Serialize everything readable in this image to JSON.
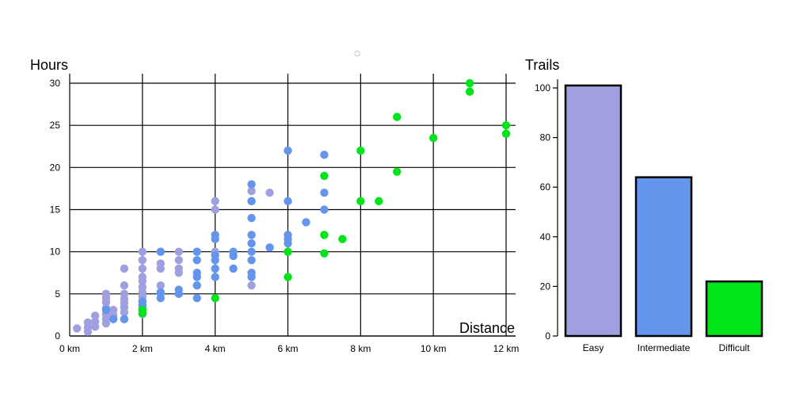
{
  "decor": {
    "top_marker": "○"
  },
  "scatter": {
    "ylabel": "Hours",
    "xlabel": "Distance",
    "xlim": [
      0,
      12
    ],
    "ylim": [
      0,
      30
    ],
    "xticks": [
      "0 km",
      "2 km",
      "4 km",
      "6 km",
      "8 km",
      "10 km",
      "12 km"
    ],
    "yticks": [
      "0",
      "5",
      "10",
      "15",
      "20",
      "25",
      "30"
    ],
    "grid": true,
    "colors": {
      "easy": "#a0a0e0",
      "intermediate": "#6495ed",
      "difficult": "#00e51a"
    }
  },
  "bars": {
    "ylabel": "Trails",
    "ylim": [
      0,
      100
    ],
    "yticks": [
      "0",
      "20",
      "40",
      "60",
      "80",
      "100"
    ]
  },
  "chart_data": [
    {
      "type": "scatter",
      "xlabel": "Distance",
      "ylabel": "Hours",
      "x_unit": "km",
      "xlim": [
        0,
        12
      ],
      "ylim": [
        0,
        30
      ],
      "grid": true,
      "series": [
        {
          "color": "#a0a0e0",
          "points": [
            [
              0.2,
              0.9
            ],
            [
              0.5,
              0.5
            ],
            [
              0.5,
              1.0
            ],
            [
              0.5,
              1.6
            ],
            [
              0.7,
              1.1
            ],
            [
              0.7,
              1.7
            ],
            [
              0.7,
              2.4
            ],
            [
              1.0,
              1.5
            ],
            [
              1.0,
              2.0
            ],
            [
              1.0,
              2.6
            ],
            [
              1.0,
              3.3
            ],
            [
              1.0,
              4.0
            ],
            [
              1.0,
              4.5
            ],
            [
              1.0,
              5.0
            ],
            [
              1.2,
              2.1
            ],
            [
              1.2,
              2.5
            ],
            [
              1.2,
              3.1
            ],
            [
              1.5,
              2.0
            ],
            [
              1.5,
              2.8
            ],
            [
              1.5,
              3.4
            ],
            [
              1.5,
              3.9
            ],
            [
              1.5,
              4.4
            ],
            [
              1.5,
              5.0
            ],
            [
              1.5,
              6.0
            ],
            [
              1.5,
              8.0
            ],
            [
              2.0,
              2.6
            ],
            [
              2.0,
              3.2
            ],
            [
              2.0,
              3.7
            ],
            [
              2.0,
              4.2
            ],
            [
              2.0,
              4.7
            ],
            [
              2.0,
              5.2
            ],
            [
              2.0,
              5.8
            ],
            [
              2.0,
              6.5
            ],
            [
              2.0,
              7.0
            ],
            [
              2.0,
              8.0
            ],
            [
              2.0,
              9.0
            ],
            [
              2.0,
              10.0
            ],
            [
              2.5,
              5.0
            ],
            [
              2.5,
              6.0
            ],
            [
              2.5,
              8.0
            ],
            [
              2.5,
              8.6
            ],
            [
              2.5,
              10.0
            ],
            [
              3.0,
              7.5
            ],
            [
              3.0,
              8.0
            ],
            [
              3.0,
              9.0
            ],
            [
              3.0,
              10.0
            ],
            [
              3.5,
              6.0
            ],
            [
              3.5,
              10.0
            ],
            [
              4.0,
              15.0
            ],
            [
              4.0,
              16.0
            ],
            [
              4.0,
              10.0
            ],
            [
              5.0,
              6.0
            ],
            [
              5.0,
              16.0
            ],
            [
              5.0,
              17.2
            ],
            [
              5.5,
              17.0
            ]
          ]
        },
        {
          "color": "#6495ed",
          "points": [
            [
              1.0,
              3.1
            ],
            [
              1.2,
              2.0
            ],
            [
              1.5,
              2.0
            ],
            [
              2.0,
              3.6
            ],
            [
              2.0,
              4.1
            ],
            [
              2.5,
              4.5
            ],
            [
              2.5,
              5.2
            ],
            [
              2.5,
              10.0
            ],
            [
              3.0,
              5.0
            ],
            [
              3.0,
              5.5
            ],
            [
              3.5,
              4.5
            ],
            [
              3.5,
              6.0
            ],
            [
              3.5,
              7.0
            ],
            [
              3.5,
              7.5
            ],
            [
              3.5,
              9.0
            ],
            [
              3.5,
              10.0
            ],
            [
              4.0,
              7.0
            ],
            [
              4.0,
              8.0
            ],
            [
              4.0,
              9.0
            ],
            [
              4.0,
              9.6
            ],
            [
              4.0,
              11.5
            ],
            [
              4.0,
              12.0
            ],
            [
              4.5,
              8.0
            ],
            [
              4.5,
              9.5
            ],
            [
              4.5,
              10.0
            ],
            [
              5.0,
              7.0
            ],
            [
              5.0,
              7.5
            ],
            [
              5.0,
              9.0
            ],
            [
              5.0,
              10.0
            ],
            [
              5.0,
              11.0
            ],
            [
              5.0,
              12.0
            ],
            [
              5.0,
              14.0
            ],
            [
              5.0,
              16.0
            ],
            [
              5.0,
              18.0
            ],
            [
              5.5,
              10.5
            ],
            [
              6.0,
              11.0
            ],
            [
              6.0,
              11.5
            ],
            [
              6.0,
              12.0
            ],
            [
              6.0,
              16.0
            ],
            [
              6.0,
              22.0
            ],
            [
              6.5,
              13.5
            ],
            [
              7.0,
              15.0
            ],
            [
              7.0,
              17.0
            ],
            [
              7.0,
              21.5
            ]
          ]
        },
        {
          "color": "#00e51a",
          "points": [
            [
              2.0,
              2.7
            ],
            [
              2.0,
              3.1
            ],
            [
              4.0,
              4.5
            ],
            [
              6.0,
              7.0
            ],
            [
              6.0,
              10.0
            ],
            [
              7.0,
              9.8
            ],
            [
              7.0,
              12.0
            ],
            [
              7.0,
              19.0
            ],
            [
              7.5,
              11.5
            ],
            [
              8.0,
              16.0
            ],
            [
              8.0,
              22.0
            ],
            [
              8.5,
              16.0
            ],
            [
              9.0,
              19.5
            ],
            [
              9.0,
              26.0
            ],
            [
              10.0,
              23.5
            ],
            [
              11.0,
              29.0
            ],
            [
              11.0,
              30.0
            ],
            [
              12.0,
              24.0
            ],
            [
              12.0,
              25.0
            ]
          ]
        }
      ]
    },
    {
      "type": "bar",
      "ylabel": "Trails",
      "categories": [
        "Easy",
        "Intermediate",
        "Difficult"
      ],
      "values": [
        101,
        64,
        22
      ],
      "colors": [
        "#a0a0e0",
        "#6495ed",
        "#00e51a"
      ],
      "ylim": [
        0,
        100
      ]
    }
  ]
}
